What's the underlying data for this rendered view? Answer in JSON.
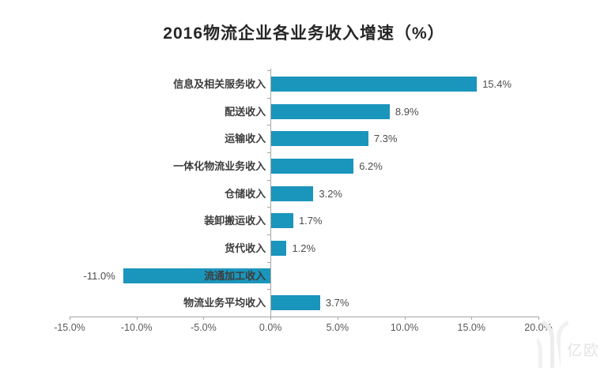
{
  "title": "2016物流企业各业务收入增速（%）",
  "watermark": {
    "text": "亿欧"
  },
  "colors": {
    "bar": "#1A95BB",
    "axis": "#A6A6A6",
    "category_text": "#3D3D3D",
    "value_text": "#4D4D4D",
    "tick_text": "#595959",
    "title_text": "#262626"
  },
  "chart_data": {
    "type": "bar",
    "orientation": "horizontal",
    "title": "2016物流企业各业务收入增速（%）",
    "categories": [
      "信息及相关服务收入",
      "配送收入",
      "运输收入",
      "一体化物流业务收入",
      "仓储收入",
      "装卸搬运收入",
      "货代收入",
      "流通加工收入",
      "物流业务平均收入"
    ],
    "values": [
      15.4,
      8.9,
      7.3,
      6.2,
      3.2,
      1.7,
      1.2,
      -11.0,
      3.7
    ],
    "value_labels": [
      "15.4%",
      "8.9%",
      "7.3%",
      "6.2%",
      "3.2%",
      "1.7%",
      "1.2%",
      "-11.0%",
      "3.7%"
    ],
    "xlabel": "",
    "ylabel": "",
    "xlim": [
      -15,
      20
    ],
    "x_tick_values": [
      -15,
      -10,
      -5,
      0,
      5,
      10,
      15,
      20
    ],
    "x_tick_labels": [
      "-15.0%",
      "-10.0%",
      "-5.0%",
      "0.0%",
      "5.0%",
      "10.0%",
      "15.0%",
      "20.0%"
    ],
    "grid": false,
    "legend": false
  }
}
